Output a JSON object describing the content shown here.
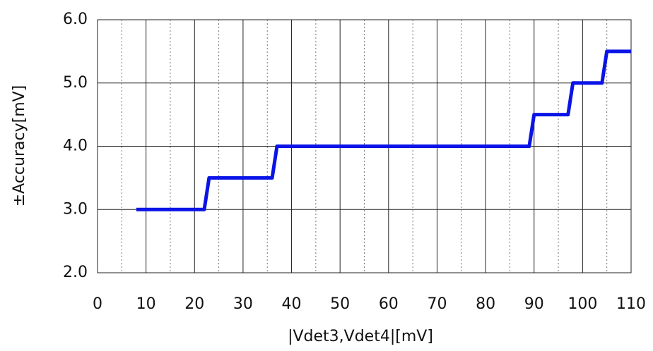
{
  "chart_data": {
    "type": "line",
    "x_label": "|Vdet3,Vdet4|[mV]",
    "y_label": "±Accuracy[mV]",
    "xlim": [
      0,
      110
    ],
    "ylim": [
      2,
      6
    ],
    "xticks": [
      0,
      10,
      20,
      30,
      40,
      50,
      60,
      70,
      80,
      90,
      100,
      110
    ],
    "xminorticks": [
      5,
      15,
      25,
      35,
      45,
      55,
      65,
      75,
      85,
      95,
      105
    ],
    "yticks": [
      {
        "value": 2,
        "label": "2.0"
      },
      {
        "value": 3,
        "label": "3.0"
      },
      {
        "value": 4,
        "label": "4.0"
      },
      {
        "value": 5,
        "label": "5.0"
      },
      {
        "value": 6,
        "label": "6.0"
      }
    ],
    "grid": true,
    "series": [
      {
        "color": "#0a14e6",
        "x": [
          8,
          22,
          23,
          36,
          37,
          89,
          90,
          97,
          98,
          104,
          105,
          110
        ],
        "values": [
          3,
          3,
          3.5,
          3.5,
          4,
          4,
          4.5,
          4.5,
          5,
          5,
          5.5,
          5.5
        ]
      }
    ]
  }
}
